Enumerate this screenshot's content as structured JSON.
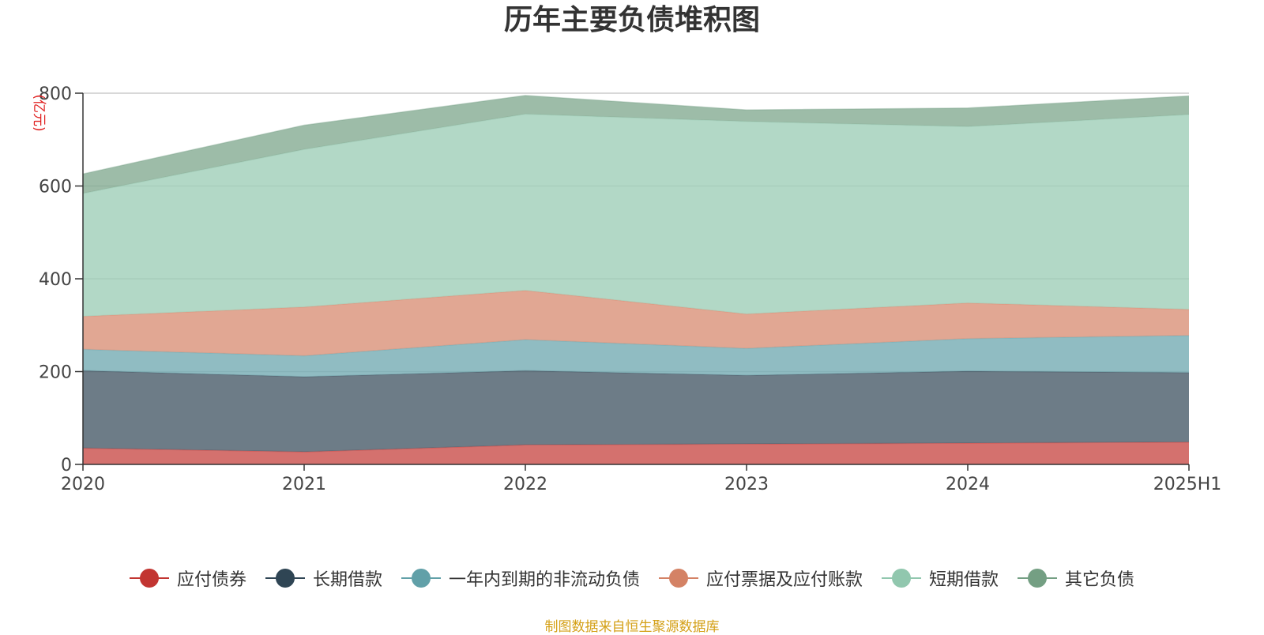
{
  "chart_data": {
    "type": "area",
    "stacked": true,
    "title": "历年主要负债堆积图",
    "unit_label": "(亿元)",
    "categories": [
      "2020",
      "2021",
      "2022",
      "2023",
      "2024",
      "2025H1"
    ],
    "ylim": [
      0,
      800
    ],
    "yticks": [
      0,
      200,
      400,
      600,
      800
    ],
    "grid": true,
    "legend_position": "bottom",
    "series": [
      {
        "name": "应付债券",
        "color": "#c23531",
        "values": [
          35,
          27,
          42,
          44,
          46,
          48
        ]
      },
      {
        "name": "长期借款",
        "color": "#2f4554",
        "values": [
          167,
          162,
          160,
          148,
          155,
          150
        ]
      },
      {
        "name": "一年内到期的非流动负债",
        "color": "#61a0a8",
        "values": [
          46,
          45,
          67,
          58,
          70,
          80
        ]
      },
      {
        "name": "应付票据及应付账款",
        "color": "#d48265",
        "values": [
          71,
          105,
          106,
          74,
          77,
          56
        ]
      },
      {
        "name": "短期借款",
        "color": "#91c7ae",
        "values": [
          265,
          340,
          380,
          415,
          380,
          420
        ]
      },
      {
        "name": "其它负债",
        "color": "#749f83",
        "values": [
          42,
          52,
          40,
          25,
          40,
          40
        ]
      }
    ]
  },
  "footer": {
    "source_note": "制图数据来自恒生聚源数据库"
  }
}
